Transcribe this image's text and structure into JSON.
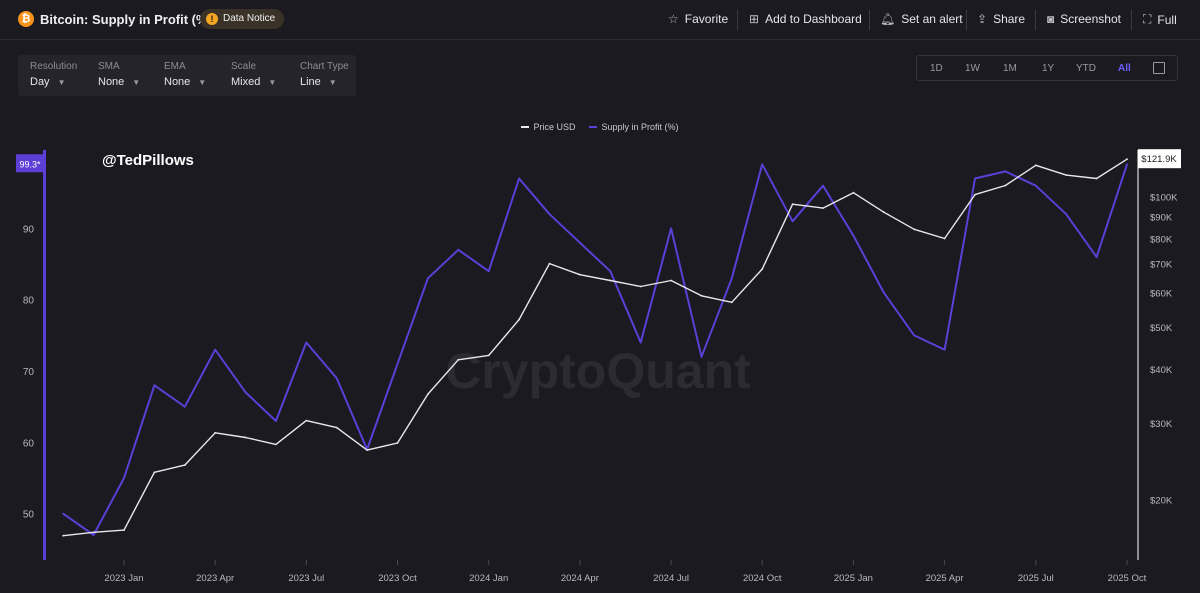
{
  "header": {
    "title": "Bitcoin: Supply in Profit (%)",
    "notice_label": "Data Notice",
    "favorite": "Favorite",
    "add_dashboard": "Add to Dashboard",
    "set_alert": "Set an alert",
    "share": "Share",
    "screenshot": "Screenshot",
    "full": "Full"
  },
  "controls": [
    {
      "label": "Resolution",
      "value": "Day"
    },
    {
      "label": "SMA",
      "value": "None"
    },
    {
      "label": "EMA",
      "value": "None"
    },
    {
      "label": "Scale",
      "value": "Mixed"
    },
    {
      "label": "Chart Type",
      "value": "Line"
    }
  ],
  "ranges": [
    "1D",
    "1W",
    "1M",
    "1Y",
    "YTD",
    "All"
  ],
  "active_range": "All",
  "watermark": "CryptoQuant",
  "handle": "@TedPillows",
  "colors": {
    "supply": "#5b3fd6",
    "price": "#e8e8ec",
    "accent": "#6b5cff"
  },
  "chart_data": {
    "type": "line",
    "x": [
      "2022-11",
      "2022-12",
      "2023-01",
      "2023-02",
      "2023-03",
      "2023-04",
      "2023-05",
      "2023-06",
      "2023-07",
      "2023-08",
      "2023-09",
      "2023-10",
      "2023-11",
      "2023-12",
      "2024-01",
      "2024-02",
      "2024-03",
      "2024-04",
      "2024-05",
      "2024-06",
      "2024-07",
      "2024-08",
      "2024-09",
      "2024-10",
      "2024-11",
      "2024-12",
      "2025-01",
      "2025-02",
      "2025-03",
      "2025-04",
      "2025-05",
      "2025-06",
      "2025-07",
      "2025-08",
      "2025-09",
      "2025-10"
    ],
    "x_ticks": [
      "2023 Jan",
      "2023 Apr",
      "2023 Jul",
      "2023 Oct",
      "2024 Jan",
      "2024 Apr",
      "2024 Jul",
      "2024 Oct",
      "2025 Jan",
      "2025 Apr",
      "2025 Jul",
      "2025 Oct"
    ],
    "series": [
      {
        "name": "Supply in Profit (%)",
        "axis": "left",
        "values": [
          50,
          47,
          55,
          68,
          65,
          73,
          67,
          63,
          74,
          69,
          59,
          71,
          83,
          87,
          84,
          97,
          92,
          88,
          84,
          74,
          90,
          72,
          83,
          99,
          91,
          96,
          89,
          81,
          75,
          73,
          97,
          98,
          96,
          92,
          86,
          99
        ]
      },
      {
        "name": "Price USD",
        "axis": "right",
        "values": [
          16500,
          16800,
          17000,
          23100,
          24000,
          28500,
          27800,
          26800,
          30400,
          29300,
          26000,
          27000,
          35000,
          42000,
          43000,
          52000,
          70000,
          66000,
          64000,
          62000,
          64000,
          59000,
          57000,
          68000,
          96000,
          94000,
          102000,
          92000,
          84000,
          80000,
          101000,
          106000,
          118000,
          112000,
          110000,
          121900
        ]
      }
    ],
    "y_left": {
      "ticks": [
        50,
        60,
        70,
        80,
        90
      ],
      "lim": [
        43.5,
        101
      ],
      "current_label": "99.3*"
    },
    "y_right": {
      "ticks": [
        "$20K",
        "$30K",
        "$40K",
        "$50K",
        "$60K",
        "$70K",
        "$80K",
        "$90K",
        "$100K"
      ],
      "tick_values": [
        20000,
        30000,
        40000,
        50000,
        60000,
        70000,
        80000,
        90000,
        100000
      ],
      "lim": [
        14500,
        128000
      ],
      "scale": "log",
      "current_label": "$121.9K"
    },
    "legend": [
      "Price USD",
      "Supply in Profit (%)"
    ],
    "legend_position": "top-center"
  }
}
